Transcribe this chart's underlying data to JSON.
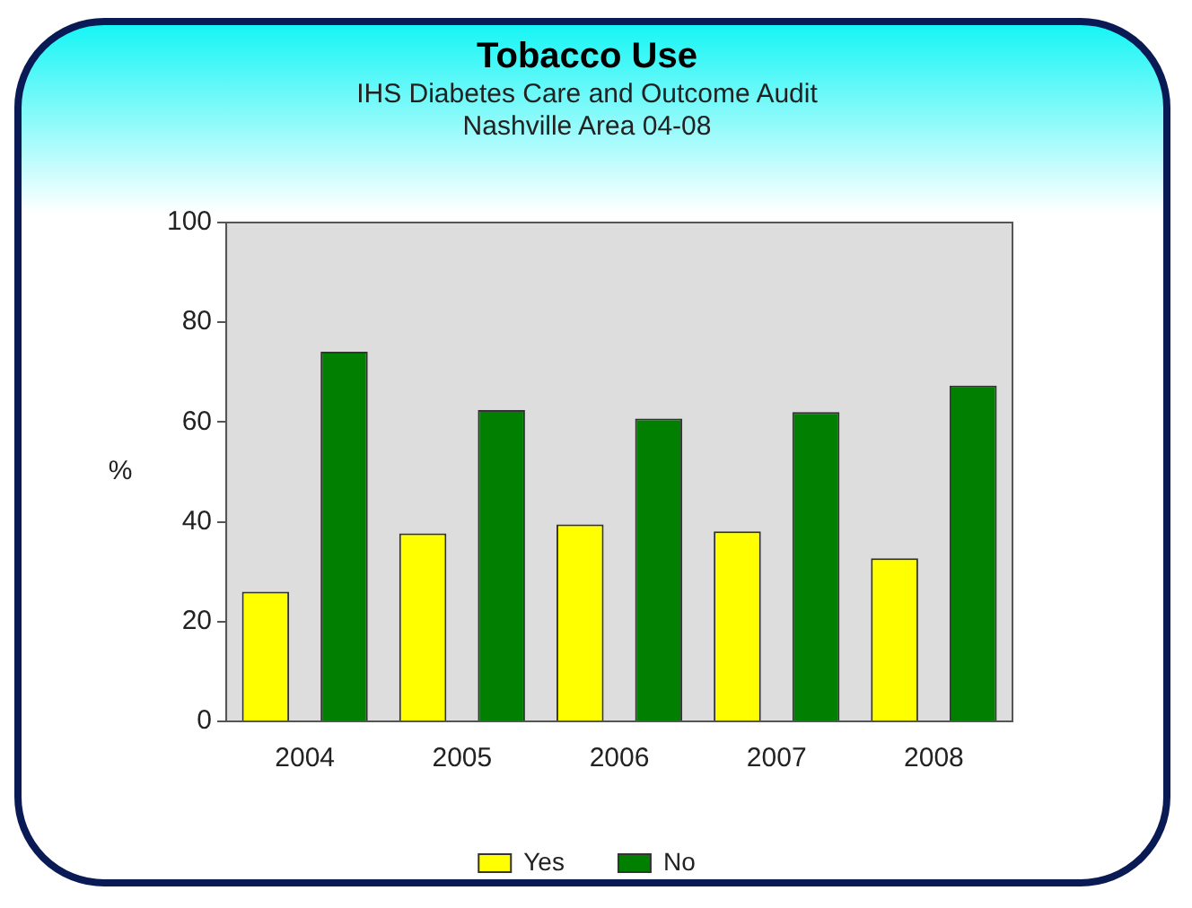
{
  "chart_data": {
    "type": "bar",
    "title": "Tobacco Use",
    "subtitle": "IHS Diabetes Care and Outcome Audit\nNashville Area 04-08",
    "ylabel": "%",
    "categories": [
      "2004",
      "2005",
      "2006",
      "2007",
      "2008"
    ],
    "series": [
      {
        "name": "Yes",
        "color": "#ffff00",
        "values": [
          26,
          37.7,
          39.5,
          38.1,
          32.7
        ]
      },
      {
        "name": "No",
        "color": "#007f00",
        "values": [
          74.1,
          62.4,
          60.7,
          62,
          67.3
        ]
      }
    ],
    "ylim": [
      0,
      100
    ],
    "yticks": [
      0,
      20,
      40,
      60,
      80,
      100
    ],
    "grid": false,
    "legend": "bottom"
  }
}
